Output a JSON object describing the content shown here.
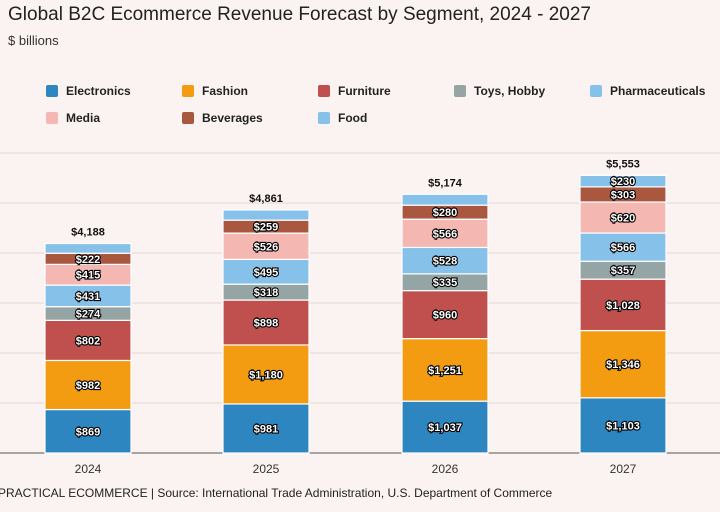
{
  "chart_data": {
    "type": "bar",
    "stacked": true,
    "title": "Global B2C Ecommerce Revenue Forecast by Segment, 2024 - 2027",
    "subtitle": "$ billions",
    "source": "PRACTICAL ECOMMERCE | Source: International Trade Administration, U.S. Department of Commerce",
    "categories": [
      "2024",
      "2025",
      "2026",
      "2027"
    ],
    "totals": [
      "$4,188",
      "$4,861",
      "$5,174",
      "$5,553"
    ],
    "total_values": [
      4188,
      4861,
      5174,
      5553
    ],
    "ylim": [
      0,
      6000
    ],
    "grid": true,
    "legend_position": "top",
    "series": [
      {
        "name": "Electronics",
        "color": "#2e86c1",
        "values": [
          869,
          981,
          1037,
          1103
        ],
        "labels": [
          "$869",
          "$981",
          "$1,037",
          "$1,103"
        ]
      },
      {
        "name": "Fashion",
        "color": "#f39c12",
        "values": [
          982,
          1180,
          1251,
          1346
        ],
        "labels": [
          "$982",
          "$1,180",
          "$1,251",
          "$1,346"
        ]
      },
      {
        "name": "Furniture",
        "color": "#c0504d",
        "values": [
          802,
          898,
          960,
          1028
        ],
        "labels": [
          "$802",
          "$898",
          "$960",
          "$1,028"
        ]
      },
      {
        "name": "Toys, Hobby",
        "color": "#95a5a6",
        "values": [
          274,
          318,
          335,
          357
        ],
        "labels": [
          "$274",
          "$318",
          "$335",
          "$357"
        ]
      },
      {
        "name": "Pharmaceuticals",
        "color": "#85c1e9",
        "values": [
          431,
          495,
          528,
          566
        ],
        "labels": [
          "$431",
          "$495",
          "$528",
          "$566"
        ]
      },
      {
        "name": "Media",
        "color": "#f5b7b1",
        "values": [
          415,
          526,
          566,
          620
        ],
        "labels": [
          "$415",
          "$526",
          "$566",
          "$620"
        ]
      },
      {
        "name": "Beverages",
        "color": "#a9573e",
        "values": [
          222,
          259,
          280,
          303
        ],
        "labels": [
          "$222",
          "$259",
          "$280",
          "$303"
        ]
      },
      {
        "name": "Food",
        "color": "#85c1e9",
        "values": [
          195,
          204,
          217,
          230
        ],
        "labels": [
          "",
          "",
          "",
          "$230"
        ]
      }
    ]
  }
}
